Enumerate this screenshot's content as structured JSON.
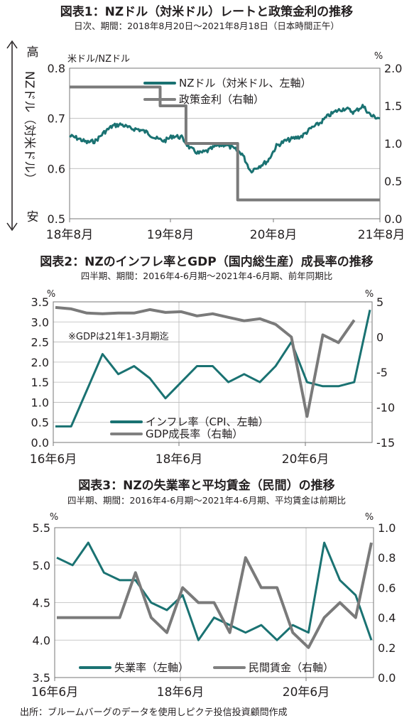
{
  "footer": "出所：ブルームバーグのデータを使用しピクテ投信投資顧問作成",
  "chart_data": [
    {
      "type": "line",
      "title": "図表1：NZドル（対米ドル）レートと政策金利の推移",
      "subtitle": "日次、期間：2018年8月20日～2021年8月18日（日本時間正午）",
      "left_unit": "米ドル/NZドル",
      "right_unit": "%",
      "side_label": "NZドル（対米ドル）",
      "side_high": "高",
      "side_low": "安",
      "x_ticks": [
        "18年8月",
        "19年8月",
        "20年8月",
        "21年8月"
      ],
      "y_left_ticks": [
        "0.8",
        "0.7",
        "0.6",
        "0.5"
      ],
      "y_right_ticks": [
        "2.0",
        "1.5",
        "1.0",
        "0.5",
        "0.0"
      ],
      "ylim_left": [
        0.5,
        0.8
      ],
      "ylim_right": [
        0.0,
        2.0
      ],
      "xlim": [
        0,
        36
      ],
      "grid": "horizontal",
      "legend": "top-center",
      "series": [
        {
          "name": "NZドル（対米ドル、左軸）",
          "axis": "left",
          "color": "#1a7272",
          "x": [
            0,
            1,
            2,
            3,
            4,
            5,
            6,
            7,
            8,
            9,
            10,
            11,
            12,
            13,
            14,
            15,
            16,
            17,
            18,
            19,
            20,
            21,
            22,
            23,
            24,
            25,
            26,
            27,
            28,
            29,
            30,
            31,
            32,
            33,
            34,
            35,
            36
          ],
          "values": [
            0.665,
            0.66,
            0.652,
            0.655,
            0.672,
            0.685,
            0.688,
            0.68,
            0.678,
            0.672,
            0.66,
            0.655,
            0.665,
            0.662,
            0.64,
            0.63,
            0.635,
            0.645,
            0.648,
            0.64,
            0.63,
            0.595,
            0.605,
            0.615,
            0.645,
            0.655,
            0.66,
            0.665,
            0.68,
            0.69,
            0.705,
            0.715,
            0.72,
            0.712,
            0.725,
            0.705,
            0.7
          ]
        },
        {
          "name": "政策金利（右軸）",
          "axis": "right",
          "color": "#808080",
          "x": [
            0,
            10.5,
            10.5,
            13.5,
            13.5,
            19.5,
            19.5,
            36
          ],
          "values": [
            1.75,
            1.75,
            1.5,
            1.5,
            1.0,
            1.0,
            0.25,
            0.25
          ]
        }
      ]
    },
    {
      "type": "line",
      "title": "図表2：NZのインフレ率とGDP（国内総生産）成長率の推移",
      "subtitle": "四半期、期間：2016年4-6月期～2021年4-6月期、前年同期比",
      "note": "※GDPは21年1-3月期迄",
      "left_unit": "%",
      "right_unit": "%",
      "categories": [
        "16Q2",
        "16Q3",
        "16Q4",
        "17Q1",
        "17Q2",
        "17Q3",
        "17Q4",
        "18Q1",
        "18Q2",
        "18Q3",
        "18Q4",
        "19Q1",
        "19Q2",
        "19Q3",
        "19Q4",
        "20Q1",
        "20Q2",
        "20Q3",
        "20Q4",
        "21Q1",
        "21Q2"
      ],
      "x_ticks": [
        "16年6月",
        "18年6月",
        "20年6月"
      ],
      "y_left_ticks": [
        "3.5",
        "3.0",
        "2.5",
        "2.0",
        "1.5",
        "1.0",
        "0.5",
        "0.0"
      ],
      "y_right_ticks": [
        "5",
        "0",
        "-5",
        "-10",
        "-15"
      ],
      "ylim_left": [
        0,
        3.5
      ],
      "ylim_right": [
        -15,
        5
      ],
      "legend": "bottom-center",
      "series": [
        {
          "name": "インフレ率（CPI、左軸）",
          "axis": "left",
          "color": "#1a7272",
          "values": [
            0.4,
            0.4,
            1.3,
            2.2,
            1.7,
            1.9,
            1.6,
            1.1,
            1.5,
            1.9,
            1.9,
            1.5,
            1.7,
            1.5,
            1.9,
            2.5,
            1.5,
            1.4,
            1.4,
            1.5,
            3.3
          ]
        },
        {
          "name": "GDP成長率（右軸）",
          "axis": "right",
          "color": "#808080",
          "values": [
            4.2,
            4.0,
            3.4,
            3.3,
            3.4,
            3.4,
            3.9,
            3.5,
            3.6,
            3.0,
            3.3,
            2.8,
            2.3,
            2.6,
            1.8,
            0.0,
            -11.3,
            0.3,
            -0.8,
            2.4,
            null
          ]
        }
      ]
    },
    {
      "type": "line",
      "title": "図表3：NZの失業率と平均賃金（民間）の推移",
      "subtitle": "四半期、期間：2016年4-6月期～2021年4-6月期、平均賃金は前期比",
      "left_unit": "%",
      "right_unit": "%",
      "categories": [
        "16Q2",
        "16Q3",
        "16Q4",
        "17Q1",
        "17Q2",
        "17Q3",
        "17Q4",
        "18Q1",
        "18Q2",
        "18Q3",
        "18Q4",
        "19Q1",
        "19Q2",
        "19Q3",
        "19Q4",
        "20Q1",
        "20Q2",
        "20Q3",
        "20Q4",
        "21Q1",
        "21Q2"
      ],
      "x_ticks": [
        "16年6月",
        "18年6月",
        "20年6月"
      ],
      "y_left_ticks": [
        "5.5",
        "5.0",
        "4.5",
        "4.0",
        "3.5"
      ],
      "y_right_ticks": [
        "1.0",
        "0.8",
        "0.6",
        "0.4",
        "0.2",
        "0.0"
      ],
      "ylim_left": [
        3.5,
        5.5
      ],
      "ylim_right": [
        0.0,
        1.0
      ],
      "legend": "bottom-center",
      "series": [
        {
          "name": "失業率（左軸）",
          "axis": "left",
          "color": "#1a7272",
          "values": [
            5.1,
            5.0,
            5.3,
            4.9,
            4.8,
            4.8,
            4.5,
            4.4,
            4.6,
            4.0,
            4.3,
            4.2,
            4.1,
            4.2,
            4.0,
            4.2,
            4.1,
            5.3,
            4.8,
            4.6,
            4.0
          ]
        },
        {
          "name": "民間賃金（右軸）",
          "axis": "right",
          "color": "#808080",
          "values": [
            0.4,
            0.4,
            0.4,
            0.4,
            0.4,
            0.7,
            0.4,
            0.3,
            0.6,
            0.5,
            0.5,
            0.3,
            0.8,
            0.6,
            0.6,
            0.3,
            0.2,
            0.4,
            0.5,
            0.4,
            0.9
          ]
        }
      ]
    }
  ]
}
